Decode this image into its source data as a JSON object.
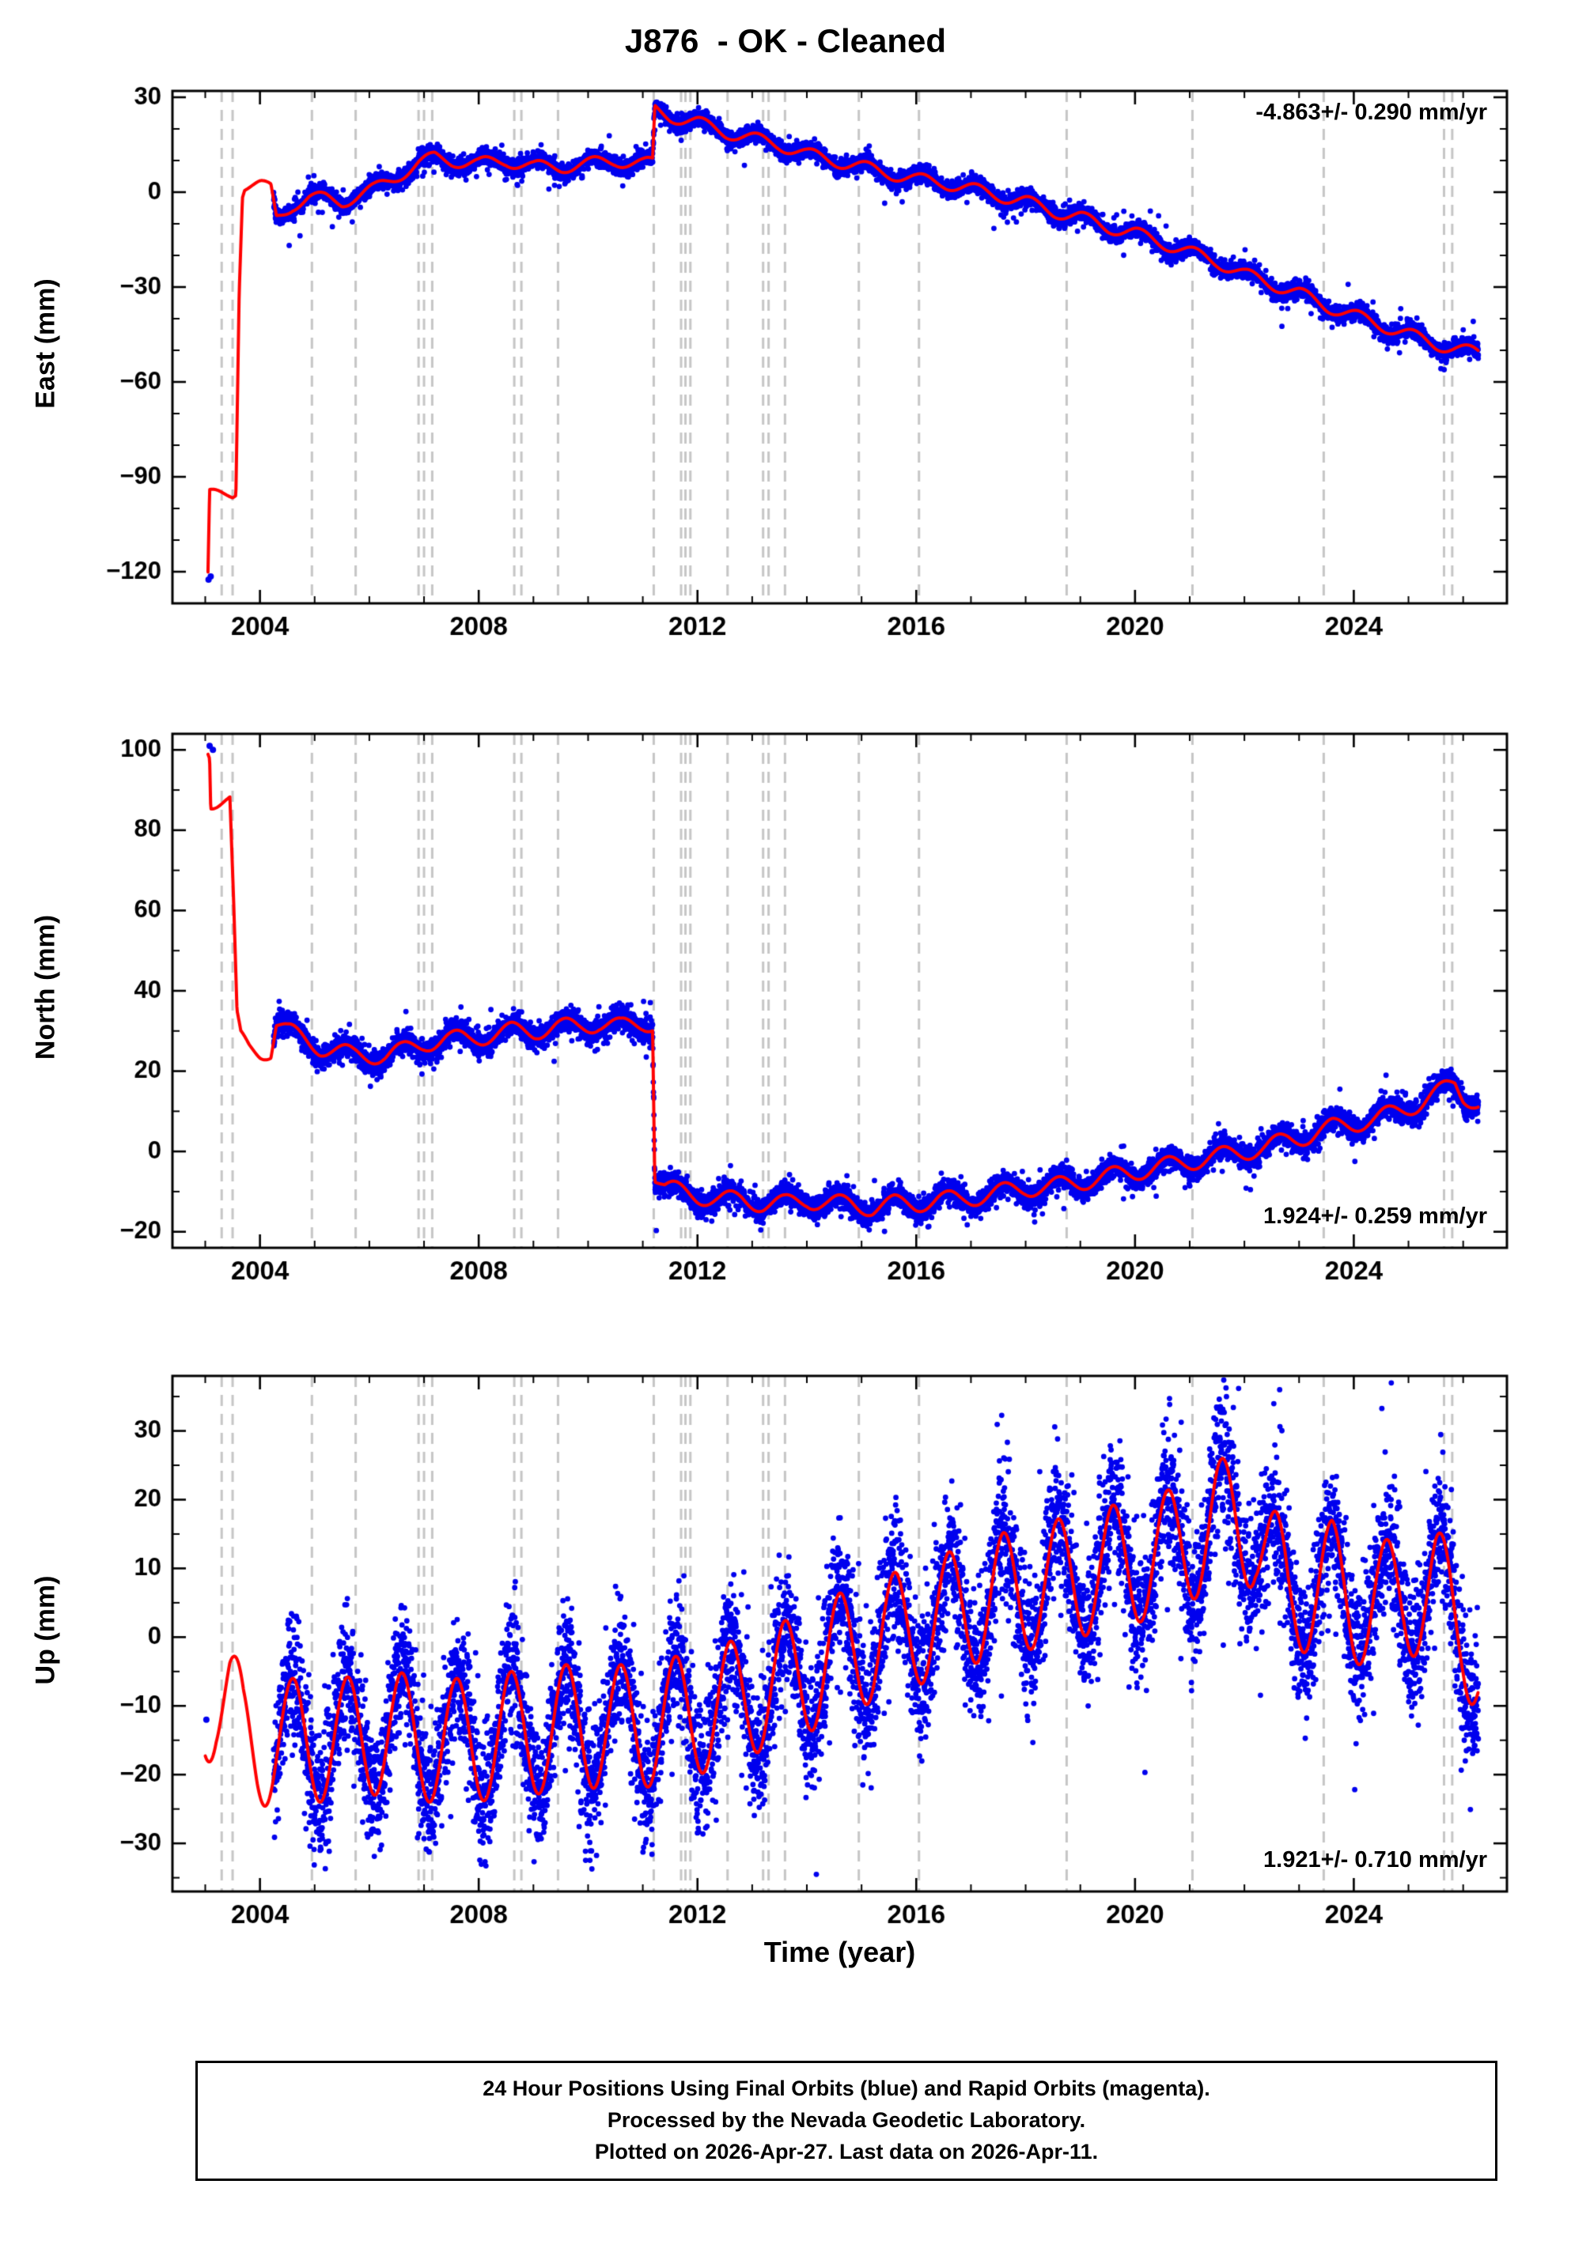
{
  "title": "J876  - OK - Cleaned",
  "xlabel": "Time (year)",
  "footer": {
    "line1": "24 Hour Positions Using Final Orbits (blue) and Rapid Orbits (magenta).",
    "line2": "Processed by the Nevada Geodetic Laboratory.",
    "line3": "Plotted on 2026-Apr-27. Last data on 2026-Apr-11."
  },
  "colors": {
    "scatter": "#0000ee",
    "model": "#ff0000",
    "event_line": "#c6c6c6",
    "axis": "#000000",
    "background": "#ffffff"
  },
  "chart_data": {
    "type": "scatter",
    "title": "J876  - OK - Cleaned",
    "xlabel": "Time (year)",
    "x_range": [
      2002.4,
      2026.8
    ],
    "x_major_ticks": [
      2004,
      2008,
      2012,
      2016,
      2020,
      2024
    ],
    "x_minor_step": 1,
    "grid": false,
    "event_lines": [
      2003.3,
      2003.5,
      2004.95,
      2005.75,
      2006.9,
      2007.0,
      2007.15,
      2008.65,
      2008.78,
      2009.45,
      2011.2,
      2011.7,
      2011.78,
      2011.87,
      2012.55,
      2013.2,
      2013.3,
      2013.6,
      2014.95,
      2016.05,
      2018.75,
      2021.05,
      2023.45,
      2025.65,
      2025.8
    ],
    "panels": [
      {
        "id": "east",
        "ylabel": "East (mm)",
        "ylim": [
          -130,
          32
        ],
        "yticks": [
          30,
          0,
          -30,
          -60,
          -90,
          -120
        ],
        "y_minor_step": 10,
        "annotation": "-4.863+/- 0.290 mm/yr",
        "annotation_pos": "top-right",
        "rate_mm_per_yr": -4.863,
        "rate_sigma": 0.29,
        "seasonal_amp": 2.0,
        "seasonal_phase": 0.1,
        "scatter": {
          "start": 2004.25,
          "end": 2026.28,
          "noise_sd": 1.3,
          "outlier_frac": 0.04,
          "outlier_sd": 3.5
        },
        "early_points": [
          [
            2003.06,
            -122.5
          ],
          [
            2003.1,
            -121.5
          ]
        ],
        "model": [
          [
            2003.05,
            -122
          ],
          [
            2003.08,
            -96
          ],
          [
            2003.5,
            -95
          ],
          [
            2003.56,
            -94
          ],
          [
            2003.62,
            -30
          ],
          [
            2003.68,
            0
          ],
          [
            2003.72,
            2
          ],
          [
            2004.0,
            2
          ],
          [
            2004.2,
            1
          ],
          [
            2004.3,
            -8
          ],
          [
            2004.6,
            -4
          ],
          [
            2004.9,
            -2
          ],
          [
            2005.2,
            -2
          ],
          [
            2005.5,
            -3
          ],
          [
            2005.8,
            -1
          ],
          [
            2006.1,
            1
          ],
          [
            2006.5,
            5
          ],
          [
            2006.9,
            9
          ],
          [
            2007.2,
            11
          ],
          [
            2007.5,
            10
          ],
          [
            2008.0,
            9
          ],
          [
            2008.5,
            10
          ],
          [
            2009.0,
            8
          ],
          [
            2009.5,
            8
          ],
          [
            2010.0,
            9
          ],
          [
            2010.5,
            10
          ],
          [
            2011.0,
            9
          ],
          [
            2011.18,
            9
          ],
          [
            2011.22,
            26
          ],
          [
            2011.5,
            24
          ],
          [
            2012.0,
            22
          ],
          [
            2012.5,
            19
          ],
          [
            2013.0,
            17
          ],
          [
            2013.5,
            15
          ],
          [
            2014.0,
            12
          ],
          [
            2014.5,
            10
          ],
          [
            2015.0,
            8
          ],
          [
            2015.5,
            6
          ],
          [
            2016.0,
            4
          ],
          [
            2016.5,
            3
          ],
          [
            2017.0,
            1
          ],
          [
            2017.5,
            -1
          ],
          [
            2018.0,
            -3
          ],
          [
            2018.5,
            -6
          ],
          [
            2019.0,
            -8
          ],
          [
            2019.5,
            -11
          ],
          [
            2020.0,
            -13
          ],
          [
            2020.5,
            -16
          ],
          [
            2021.0,
            -19
          ],
          [
            2021.5,
            -22
          ],
          [
            2022.0,
            -26
          ],
          [
            2022.5,
            -29
          ],
          [
            2023.0,
            -32
          ],
          [
            2023.5,
            -36
          ],
          [
            2024.0,
            -39
          ],
          [
            2024.5,
            -42
          ],
          [
            2025.0,
            -45
          ],
          [
            2025.5,
            -48
          ],
          [
            2026.0,
            -50
          ],
          [
            2026.28,
            -51
          ]
        ]
      },
      {
        "id": "north",
        "ylabel": "North (mm)",
        "ylim": [
          -24,
          104
        ],
        "yticks": [
          100,
          80,
          60,
          40,
          20,
          0,
          -20
        ],
        "y_minor_step": 10,
        "annotation": "1.924+/- 0.259 mm/yr",
        "annotation_pos": "bottom-right",
        "rate_mm_per_yr": 1.924,
        "rate_sigma": 0.259,
        "seasonal_amp": 2.2,
        "seasonal_phase": 0.6,
        "scatter": {
          "start": 2004.25,
          "end": 2026.28,
          "noise_sd": 1.4,
          "outlier_frac": 0.04,
          "outlier_sd": 3.5
        },
        "early_points": [
          [
            2003.08,
            101
          ],
          [
            2003.14,
            100
          ]
        ],
        "model": [
          [
            2003.05,
            101
          ],
          [
            2003.08,
            100
          ],
          [
            2003.1,
            87.5
          ],
          [
            2003.45,
            87
          ],
          [
            2003.52,
            60
          ],
          [
            2003.58,
            33
          ],
          [
            2003.65,
            28
          ],
          [
            2003.8,
            26
          ],
          [
            2004.0,
            25
          ],
          [
            2004.2,
            25
          ],
          [
            2004.3,
            32
          ],
          [
            2004.5,
            30
          ],
          [
            2004.8,
            28
          ],
          [
            2005.1,
            26
          ],
          [
            2005.4,
            25
          ],
          [
            2005.7,
            24
          ],
          [
            2006.0,
            24
          ],
          [
            2006.3,
            24
          ],
          [
            2006.6,
            25
          ],
          [
            2007.0,
            27
          ],
          [
            2007.4,
            28
          ],
          [
            2007.8,
            28
          ],
          [
            2008.2,
            29
          ],
          [
            2008.6,
            30
          ],
          [
            2009.0,
            30
          ],
          [
            2009.4,
            31
          ],
          [
            2009.8,
            31
          ],
          [
            2010.2,
            32
          ],
          [
            2010.6,
            31
          ],
          [
            2011.0,
            32
          ],
          [
            2011.18,
            32
          ],
          [
            2011.22,
            -6
          ],
          [
            2011.4,
            -9
          ],
          [
            2011.7,
            -10
          ],
          [
            2012.0,
            -11
          ],
          [
            2012.4,
            -12
          ],
          [
            2012.8,
            -12
          ],
          [
            2013.2,
            -13
          ],
          [
            2013.6,
            -13
          ],
          [
            2014.0,
            -12
          ],
          [
            2014.4,
            -13
          ],
          [
            2014.8,
            -13
          ],
          [
            2015.2,
            -14
          ],
          [
            2015.6,
            -13
          ],
          [
            2016.0,
            -13
          ],
          [
            2016.4,
            -12
          ],
          [
            2016.8,
            -12
          ],
          [
            2017.2,
            -11
          ],
          [
            2017.6,
            -10
          ],
          [
            2018.0,
            -9
          ],
          [
            2018.4,
            -9
          ],
          [
            2018.8,
            -8
          ],
          [
            2019.2,
            -7
          ],
          [
            2019.6,
            -6
          ],
          [
            2020.0,
            -5
          ],
          [
            2020.4,
            -4
          ],
          [
            2020.8,
            -3
          ],
          [
            2021.2,
            -2
          ],
          [
            2021.6,
            -1
          ],
          [
            2022.0,
            0
          ],
          [
            2022.4,
            1
          ],
          [
            2022.8,
            3
          ],
          [
            2023.2,
            4
          ],
          [
            2023.6,
            6
          ],
          [
            2024.0,
            7
          ],
          [
            2024.4,
            8
          ],
          [
            2024.8,
            10
          ],
          [
            2025.2,
            12
          ],
          [
            2025.6,
            15
          ],
          [
            2025.85,
            17
          ],
          [
            2026.0,
            14
          ],
          [
            2026.28,
            12
          ]
        ]
      },
      {
        "id": "up",
        "ylabel": "Up (mm)",
        "ylim": [
          -37,
          38
        ],
        "yticks": [
          30,
          20,
          10,
          0,
          -10,
          -20,
          -30
        ],
        "y_minor_step": 5,
        "annotation": "1.921+/- 0.710 mm/yr",
        "annotation_pos": "bottom-right",
        "rate_mm_per_yr": 1.921,
        "rate_sigma": 0.71,
        "seasonal_amp": 9.0,
        "seasonal_phase": 0.6,
        "scatter": {
          "start": 2004.25,
          "end": 2026.28,
          "noise_sd": 4.5,
          "outlier_frac": 0.06,
          "outlier_sd": 7.0
        },
        "early_points": [
          [
            2003.02,
            -12
          ]
        ],
        "model": [
          [
            2003.0,
            -10
          ],
          [
            2003.2,
            -8
          ],
          [
            2003.45,
            -9
          ],
          [
            2003.7,
            -15
          ],
          [
            2003.95,
            -16
          ],
          [
            2004.3,
            -15
          ],
          [
            2004.7,
            -15
          ],
          [
            2005.1,
            -15
          ],
          [
            2005.5,
            -15
          ],
          [
            2006.0,
            -14
          ],
          [
            2006.5,
            -14
          ],
          [
            2007.0,
            -15
          ],
          [
            2007.5,
            -15
          ],
          [
            2008.0,
            -15
          ],
          [
            2008.5,
            -14
          ],
          [
            2009.0,
            -14
          ],
          [
            2009.5,
            -13
          ],
          [
            2010.0,
            -13
          ],
          [
            2010.5,
            -13
          ],
          [
            2011.0,
            -13
          ],
          [
            2011.5,
            -12
          ],
          [
            2012.0,
            -11
          ],
          [
            2012.5,
            -10
          ],
          [
            2013.0,
            -8
          ],
          [
            2013.5,
            -7
          ],
          [
            2014.0,
            -5
          ],
          [
            2014.5,
            -3
          ],
          [
            2015.0,
            -1
          ],
          [
            2015.5,
            0
          ],
          [
            2016.0,
            2
          ],
          [
            2016.5,
            3
          ],
          [
            2017.0,
            5
          ],
          [
            2017.5,
            6
          ],
          [
            2018.0,
            7
          ],
          [
            2018.5,
            8
          ],
          [
            2019.0,
            9
          ],
          [
            2019.5,
            10
          ],
          [
            2020.0,
            11
          ],
          [
            2020.5,
            12
          ],
          [
            2021.0,
            14
          ],
          [
            2021.5,
            17
          ],
          [
            2021.8,
            17
          ],
          [
            2022.2,
            16
          ],
          [
            2022.4,
            12
          ],
          [
            2022.8,
            6
          ],
          [
            2023.2,
            7
          ],
          [
            2023.6,
            8
          ],
          [
            2024.0,
            5
          ],
          [
            2024.5,
            5
          ],
          [
            2025.0,
            6
          ],
          [
            2025.5,
            7
          ],
          [
            2026.0,
            2
          ],
          [
            2026.28,
            -4
          ]
        ]
      }
    ]
  }
}
